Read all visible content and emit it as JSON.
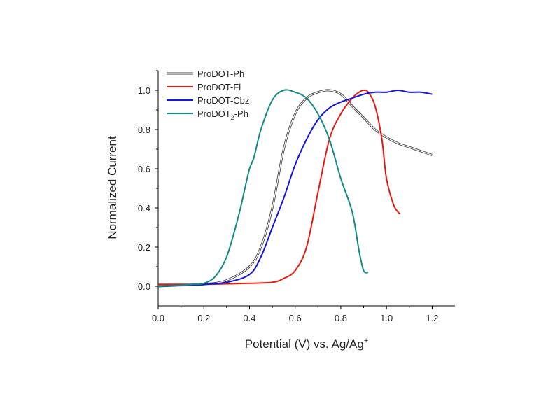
{
  "chart_data": {
    "type": "line",
    "title": "",
    "xlabel": "Potential (V) vs. Ag/Ag",
    "xlabel_superscript": "+",
    "ylabel": "Normalized Current",
    "xlim": [
      0.0,
      1.3
    ],
    "ylim": [
      -0.1,
      1.1
    ],
    "xticks": [
      "0.0",
      "0.2",
      "0.4",
      "0.6",
      "0.8",
      "1.0",
      "1.2"
    ],
    "yticks": [
      "0.0",
      "0.2",
      "0.4",
      "0.6",
      "0.8",
      "1.0"
    ],
    "grid": false,
    "legend_position": "top-left",
    "series": [
      {
        "name": "ProDOT-Ph",
        "name_subscript": "",
        "name_suffix": "",
        "color": "#444444",
        "style": "double",
        "points": [
          [
            0.0,
            0.0
          ],
          [
            0.1,
            0.005
          ],
          [
            0.2,
            0.01
          ],
          [
            0.3,
            0.03
          ],
          [
            0.4,
            0.1
          ],
          [
            0.45,
            0.2
          ],
          [
            0.5,
            0.4
          ],
          [
            0.55,
            0.7
          ],
          [
            0.6,
            0.88
          ],
          [
            0.65,
            0.96
          ],
          [
            0.7,
            0.99
          ],
          [
            0.75,
            1.0
          ],
          [
            0.8,
            0.98
          ],
          [
            0.85,
            0.92
          ],
          [
            0.9,
            0.86
          ],
          [
            0.95,
            0.8
          ],
          [
            1.0,
            0.76
          ],
          [
            1.05,
            0.73
          ],
          [
            1.1,
            0.71
          ],
          [
            1.15,
            0.69
          ],
          [
            1.2,
            0.67
          ]
        ]
      },
      {
        "name": "ProDOT-Fl",
        "name_subscript": "",
        "name_suffix": "",
        "color": "#e8190f",
        "style": "solid",
        "points": [
          [
            0.0,
            0.01
          ],
          [
            0.2,
            0.01
          ],
          [
            0.4,
            0.015
          ],
          [
            0.5,
            0.02
          ],
          [
            0.55,
            0.04
          ],
          [
            0.6,
            0.08
          ],
          [
            0.65,
            0.2
          ],
          [
            0.7,
            0.48
          ],
          [
            0.75,
            0.75
          ],
          [
            0.8,
            0.88
          ],
          [
            0.85,
            0.96
          ],
          [
            0.88,
            0.99
          ],
          [
            0.9,
            1.0
          ],
          [
            0.92,
            0.99
          ],
          [
            0.95,
            0.92
          ],
          [
            0.98,
            0.75
          ],
          [
            1.0,
            0.55
          ],
          [
            1.03,
            0.42
          ],
          [
            1.05,
            0.38
          ],
          [
            1.06,
            0.37
          ]
        ]
      },
      {
        "name": "ProDOT-Cbz",
        "name_subscript": "",
        "name_suffix": "",
        "color": "#1414e6",
        "style": "solid",
        "points": [
          [
            0.0,
            0.0
          ],
          [
            0.1,
            0.005
          ],
          [
            0.2,
            0.01
          ],
          [
            0.3,
            0.02
          ],
          [
            0.4,
            0.06
          ],
          [
            0.45,
            0.15
          ],
          [
            0.5,
            0.3
          ],
          [
            0.55,
            0.45
          ],
          [
            0.6,
            0.62
          ],
          [
            0.65,
            0.75
          ],
          [
            0.7,
            0.85
          ],
          [
            0.75,
            0.91
          ],
          [
            0.8,
            0.94
          ],
          [
            0.85,
            0.96
          ],
          [
            0.9,
            0.98
          ],
          [
            0.95,
            0.99
          ],
          [
            1.0,
            0.99
          ],
          [
            1.05,
            1.0
          ],
          [
            1.1,
            0.99
          ],
          [
            1.15,
            0.99
          ],
          [
            1.2,
            0.98
          ]
        ]
      },
      {
        "name": "ProDOT",
        "name_subscript": "2",
        "name_suffix": "-Ph",
        "color": "#138a83",
        "style": "solid",
        "points": [
          [
            0.0,
            0.0
          ],
          [
            0.1,
            0.005
          ],
          [
            0.15,
            0.01
          ],
          [
            0.2,
            0.015
          ],
          [
            0.25,
            0.05
          ],
          [
            0.3,
            0.15
          ],
          [
            0.35,
            0.35
          ],
          [
            0.38,
            0.5
          ],
          [
            0.4,
            0.6
          ],
          [
            0.42,
            0.66
          ],
          [
            0.45,
            0.8
          ],
          [
            0.5,
            0.95
          ],
          [
            0.55,
            1.0
          ],
          [
            0.6,
            0.99
          ],
          [
            0.65,
            0.96
          ],
          [
            0.7,
            0.88
          ],
          [
            0.75,
            0.75
          ],
          [
            0.8,
            0.55
          ],
          [
            0.85,
            0.38
          ],
          [
            0.88,
            0.18
          ],
          [
            0.9,
            0.08
          ],
          [
            0.92,
            0.07
          ]
        ]
      }
    ]
  }
}
